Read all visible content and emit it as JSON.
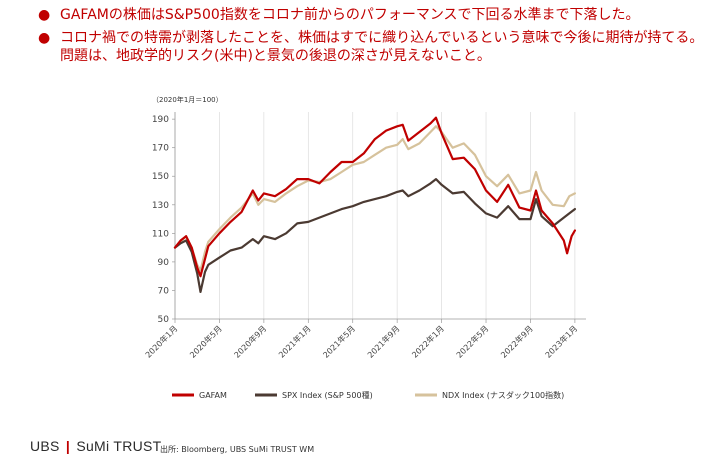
{
  "bullets": [
    "GAFAMの株価はS&P500指数をコロナ前からのパフォーマンスで下回る水準まで下落した。",
    "コロナ禍での特需が剥落したことを、株価はすでに織り込んでいるという意味で今後に期待が持てる。 問題は、地政学的リスク(米中)と景気の後退の深さが見えないこと。"
  ],
  "bullet_symbol": "●",
  "logo": {
    "left": "UBS",
    "separator": "|",
    "right": "SuMi TRUST"
  },
  "source": "出所: Bloomberg, UBS SuMi TRUST WM",
  "chart_data": {
    "type": "line",
    "unit_label": "（2020年1月＝100）",
    "xlabel": "",
    "ylabel": "",
    "ylim": [
      50,
      195
    ],
    "yticks": [
      50,
      70,
      90,
      110,
      130,
      150,
      170,
      190
    ],
    "xlim": [
      0,
      37
    ],
    "xticks": [
      {
        "x": 0,
        "label": "2020年1月"
      },
      {
        "x": 4,
        "label": "2020年5月"
      },
      {
        "x": 8,
        "label": "2020年9月"
      },
      {
        "x": 12,
        "label": "2021年1月"
      },
      {
        "x": 16,
        "label": "2021年5月"
      },
      {
        "x": 20,
        "label": "2021年9月"
      },
      {
        "x": 24,
        "label": "2022年1月"
      },
      {
        "x": 28,
        "label": "2022年5月"
      },
      {
        "x": 32,
        "label": "2022年9月"
      },
      {
        "x": 36,
        "label": "2023年1月"
      }
    ],
    "grid": "vertical",
    "legend_position": "bottom",
    "series": [
      {
        "name": "GAFAM",
        "color": "#c00000",
        "points": [
          [
            0,
            100
          ],
          [
            0.5,
            105
          ],
          [
            1,
            108
          ],
          [
            1.5,
            100
          ],
          [
            2,
            86
          ],
          [
            2.3,
            80
          ],
          [
            2.7,
            92
          ],
          [
            3,
            101
          ],
          [
            4,
            110
          ],
          [
            5,
            118
          ],
          [
            6,
            125
          ],
          [
            7,
            140
          ],
          [
            7.5,
            133
          ],
          [
            8,
            138
          ],
          [
            9,
            136
          ],
          [
            10,
            141
          ],
          [
            11,
            148
          ],
          [
            12,
            148
          ],
          [
            13,
            145
          ],
          [
            14,
            153
          ],
          [
            15,
            160
          ],
          [
            16,
            160
          ],
          [
            17,
            166
          ],
          [
            18,
            176
          ],
          [
            19,
            182
          ],
          [
            20,
            185
          ],
          [
            20.5,
            186
          ],
          [
            21,
            175
          ],
          [
            22,
            181
          ],
          [
            23,
            187
          ],
          [
            23.5,
            191
          ],
          [
            24,
            180
          ],
          [
            25,
            162
          ],
          [
            26,
            163
          ],
          [
            27,
            155
          ],
          [
            28,
            140
          ],
          [
            29,
            132
          ],
          [
            30,
            144
          ],
          [
            31,
            128
          ],
          [
            32,
            126
          ],
          [
            32.5,
            140
          ],
          [
            33,
            126
          ],
          [
            34,
            117
          ],
          [
            35,
            105
          ],
          [
            35.3,
            96
          ],
          [
            35.7,
            108
          ],
          [
            36,
            112
          ]
        ]
      },
      {
        "name": "SPX Index (S&P 500種)",
        "color": "#4b3a32",
        "points": [
          [
            0,
            100
          ],
          [
            0.5,
            103
          ],
          [
            1,
            105
          ],
          [
            1.5,
            97
          ],
          [
            2,
            82
          ],
          [
            2.3,
            69
          ],
          [
            2.7,
            83
          ],
          [
            3,
            88
          ],
          [
            4,
            93
          ],
          [
            5,
            98
          ],
          [
            6,
            100
          ],
          [
            7,
            106
          ],
          [
            7.5,
            103
          ],
          [
            8,
            108
          ],
          [
            9,
            106
          ],
          [
            10,
            110
          ],
          [
            11,
            117
          ],
          [
            12,
            118
          ],
          [
            13,
            121
          ],
          [
            14,
            124
          ],
          [
            15,
            127
          ],
          [
            16,
            129
          ],
          [
            17,
            132
          ],
          [
            18,
            134
          ],
          [
            19,
            136
          ],
          [
            20,
            139
          ],
          [
            20.5,
            140
          ],
          [
            21,
            136
          ],
          [
            22,
            140
          ],
          [
            23,
            145
          ],
          [
            23.5,
            148
          ],
          [
            24,
            144
          ],
          [
            25,
            138
          ],
          [
            26,
            139
          ],
          [
            27,
            131
          ],
          [
            28,
            124
          ],
          [
            29,
            121
          ],
          [
            30,
            129
          ],
          [
            31,
            120
          ],
          [
            32,
            120
          ],
          [
            32.5,
            134
          ],
          [
            33,
            122
          ],
          [
            34,
            115
          ],
          [
            35,
            121
          ],
          [
            35.5,
            124
          ],
          [
            36,
            127
          ]
        ]
      },
      {
        "name": "NDX Index (ナスダック100指数)",
        "color": "#d6c29c",
        "points": [
          [
            0,
            100
          ],
          [
            0.5,
            104
          ],
          [
            1,
            108
          ],
          [
            1.5,
            100
          ],
          [
            2,
            88
          ],
          [
            2.3,
            84
          ],
          [
            2.7,
            97
          ],
          [
            3,
            104
          ],
          [
            4,
            113
          ],
          [
            5,
            121
          ],
          [
            6,
            128
          ],
          [
            7,
            138
          ],
          [
            7.5,
            130
          ],
          [
            8,
            134
          ],
          [
            9,
            132
          ],
          [
            10,
            138
          ],
          [
            11,
            143
          ],
          [
            12,
            147
          ],
          [
            13,
            146
          ],
          [
            14,
            148
          ],
          [
            15,
            153
          ],
          [
            16,
            158
          ],
          [
            17,
            160
          ],
          [
            18,
            165
          ],
          [
            19,
            170
          ],
          [
            20,
            172
          ],
          [
            20.5,
            176
          ],
          [
            21,
            169
          ],
          [
            22,
            173
          ],
          [
            23,
            181
          ],
          [
            23.5,
            185
          ],
          [
            24,
            181
          ],
          [
            25,
            170
          ],
          [
            26,
            173
          ],
          [
            27,
            165
          ],
          [
            28,
            150
          ],
          [
            29,
            143
          ],
          [
            30,
            151
          ],
          [
            31,
            138
          ],
          [
            32,
            140
          ],
          [
            32.5,
            153
          ],
          [
            33,
            140
          ],
          [
            34,
            130
          ],
          [
            35,
            129
          ],
          [
            35.5,
            136
          ],
          [
            36,
            138
          ]
        ]
      }
    ]
  }
}
